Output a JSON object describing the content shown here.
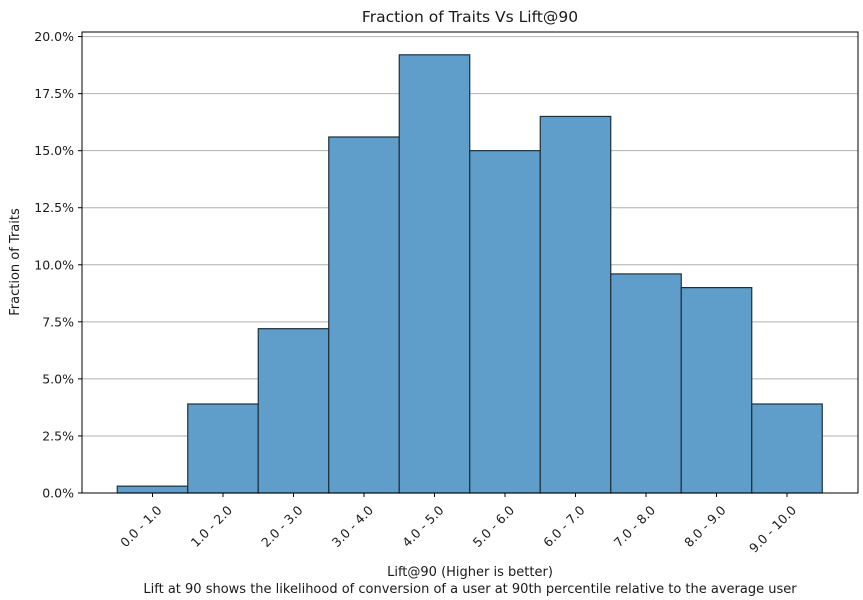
{
  "chart_data": {
    "type": "bar",
    "title": "Fraction of Traits Vs Lift@90",
    "xlabel": "Lift@90 (Higher is better)",
    "caption": "Lift at 90 shows the likelihood of conversion of a user at 90th percentile relative to the average user",
    "ylabel": "Fraction of Traits",
    "categories": [
      "0.0 - 1.0",
      "1.0 - 2.0",
      "2.0 - 3.0",
      "3.0 - 4.0",
      "4.0 - 5.0",
      "5.0 - 6.0",
      "6.0 - 7.0",
      "7.0 - 8.0",
      "8.0 - 9.0",
      "9.0 - 10.0"
    ],
    "values": [
      0.3,
      3.9,
      7.2,
      15.6,
      19.2,
      15.0,
      16.5,
      9.6,
      9.0,
      3.9
    ],
    "value_unit": "%",
    "ylim": [
      0,
      20.2
    ],
    "yticks": [
      0.0,
      2.5,
      5.0,
      7.5,
      10.0,
      12.5,
      15.0,
      17.5,
      20.0
    ],
    "ytick_labels": [
      "0.0%",
      "2.5%",
      "5.0%",
      "7.5%",
      "10.0%",
      "12.5%",
      "15.0%",
      "17.5%",
      "20.0%"
    ],
    "grid": "y",
    "legend": "none",
    "colors": {
      "bar_fill": "#5f9ecb",
      "bar_edge": "#1f2f3a",
      "grid": "#b0b0b0",
      "axis": "#000000"
    }
  }
}
